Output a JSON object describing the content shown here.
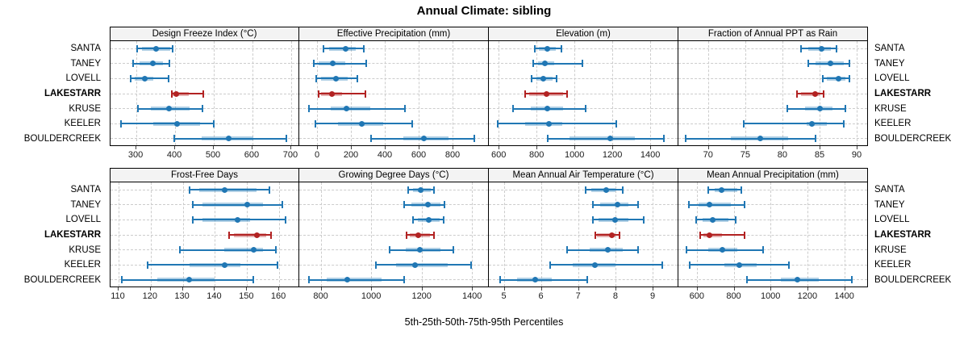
{
  "title": "Annual Climate: sibling",
  "caption": "5th-25th-50th-75th-95th Percentiles",
  "highlight_site": "LAKESTARR",
  "colors": {
    "series_blue": "#2077B4",
    "series_blue_band": "rgba(32,119,180,0.35)",
    "highlight_red": "#B22222",
    "highlight_red_band": "rgba(178,34,34,0.35)",
    "header_bg": "#F3F3F3",
    "panel_border": "#000000",
    "gridline": "#CCCCCC",
    "text": "#000000"
  },
  "chart_data": {
    "type": "trellis-percentile-dotplot",
    "rows": 2,
    "cols": 4,
    "grid": true,
    "percentiles": [
      5,
      25,
      50,
      75,
      95
    ],
    "sites": [
      "SANTA",
      "TANEY",
      "LOVELL",
      "LAKESTARR",
      "KRUSE",
      "KEELER",
      "BOULDERCREEK"
    ],
    "panels": [
      {
        "title": "Design Freeze Index (°C)",
        "xlim": [
          233,
          719
        ],
        "ticks": [
          300,
          400,
          500,
          600,
          700
        ],
        "series": [
          [
            302,
            314,
            350,
            388,
            393
          ],
          [
            292,
            307,
            343,
            368,
            386
          ],
          [
            286,
            296,
            321,
            343,
            383
          ],
          [
            391,
            394,
            403,
            435,
            473
          ],
          [
            304,
            337,
            385,
            438,
            470
          ],
          [
            260,
            343,
            406,
            464,
            500
          ],
          [
            397,
            468,
            539,
            602,
            687
          ]
        ]
      },
      {
        "title": "Effective Precipitation (mm)",
        "xlim": [
          -105,
          1005
        ],
        "ticks": [
          0,
          200,
          400,
          600,
          800
        ],
        "series": [
          [
            40,
            70,
            170,
            230,
            275
          ],
          [
            -20,
            10,
            92,
            165,
            290
          ],
          [
            -3,
            25,
            110,
            180,
            240
          ],
          [
            10,
            25,
            90,
            150,
            285
          ],
          [
            -50,
            80,
            175,
            315,
            520
          ],
          [
            -10,
            125,
            265,
            390,
            560
          ],
          [
            320,
            510,
            630,
            775,
            930
          ]
        ]
      },
      {
        "title": "Elevation (m)",
        "xlim": [
          548,
          1540
        ],
        "ticks": [
          600,
          800,
          1000,
          1200,
          1400
        ],
        "series": [
          [
            790,
            812,
            855,
            900,
            933
          ],
          [
            780,
            806,
            845,
            893,
            1040
          ],
          [
            775,
            798,
            837,
            883,
            905
          ],
          [
            740,
            760,
            852,
            938,
            960
          ],
          [
            675,
            770,
            855,
            940,
            1057
          ],
          [
            595,
            740,
            865,
            935,
            1220
          ],
          [
            860,
            975,
            1190,
            1320,
            1470
          ]
        ]
      },
      {
        "title": "Fraction of Annual PPT as Rain",
        "xlim": [
          66,
          91.3
        ],
        "ticks": [
          70,
          75,
          80,
          85,
          90
        ],
        "series": [
          [
            82.5,
            83.5,
            85.3,
            86.5,
            87.3
          ],
          [
            83.5,
            84.5,
            86.5,
            88.3,
            89
          ],
          [
            85.4,
            86,
            87.5,
            88.5,
            89
          ],
          [
            82,
            82.5,
            84.4,
            85,
            85.5
          ],
          [
            80.6,
            83,
            85,
            86.7,
            88.5
          ],
          [
            74.8,
            83.3,
            84,
            86,
            88.3
          ],
          [
            67,
            73,
            77,
            80.8,
            84.5
          ]
        ]
      },
      {
        "title": "Frost-Free Days",
        "xlim": [
          107.5,
          166
        ],
        "ticks": [
          110,
          120,
          130,
          140,
          150,
          160
        ],
        "series": [
          [
            132,
            135,
            143,
            153,
            157
          ],
          [
            133,
            136,
            150,
            155,
            161
          ],
          [
            133,
            136,
            147,
            151,
            162
          ],
          [
            144.5,
            146,
            153,
            156,
            157.5
          ],
          [
            129,
            143,
            152,
            155,
            159
          ],
          [
            119,
            132,
            143,
            148,
            159.5
          ],
          [
            111,
            122,
            132,
            140,
            152
          ]
        ]
      },
      {
        "title": "Growing Degree Days (°C)",
        "xlim": [
          715,
          1460
        ],
        "ticks": [
          800,
          1000,
          1200,
          1400
        ],
        "series": [
          [
            1145,
            1165,
            1197,
            1237,
            1250
          ],
          [
            1130,
            1158,
            1225,
            1275,
            1290
          ],
          [
            1167,
            1185,
            1228,
            1270,
            1286
          ],
          [
            1140,
            1153,
            1188,
            1233,
            1249
          ],
          [
            1073,
            1137,
            1194,
            1275,
            1327
          ],
          [
            1020,
            1100,
            1174,
            1302,
            1395
          ],
          [
            754,
            823,
            906,
            1041,
            1132
          ]
        ]
      },
      {
        "title": "Mean Annual Air Temperature (°C)",
        "xlim": [
          4.6,
          9.65
        ],
        "ticks": [
          5,
          6,
          7,
          8,
          9
        ],
        "series": [
          [
            7.2,
            7.35,
            7.75,
            8.0,
            8.2
          ],
          [
            7.4,
            7.6,
            8.05,
            8.35,
            8.6
          ],
          [
            7.4,
            7.55,
            8.0,
            8.35,
            8.75
          ],
          [
            7.45,
            7.5,
            7.9,
            8.0,
            8.1
          ],
          [
            6.7,
            7.3,
            7.8,
            8.2,
            8.6
          ],
          [
            6.25,
            6.85,
            7.45,
            8.0,
            9.25
          ],
          [
            4.9,
            5.35,
            5.85,
            6.3,
            7.25
          ]
        ]
      },
      {
        "title": "Mean Annual Precipitation (mm)",
        "xlim": [
          500,
          1520
        ],
        "ticks": [
          600,
          800,
          1000,
          1200,
          1400
        ],
        "series": [
          [
            660,
            695,
            735,
            820,
            840
          ],
          [
            555,
            610,
            670,
            785,
            860
          ],
          [
            595,
            630,
            687,
            770,
            810
          ],
          [
            620,
            635,
            670,
            735,
            860
          ],
          [
            545,
            660,
            740,
            820,
            960
          ],
          [
            560,
            750,
            830,
            925,
            1100
          ],
          [
            870,
            1055,
            1145,
            1260,
            1440
          ]
        ]
      }
    ]
  }
}
